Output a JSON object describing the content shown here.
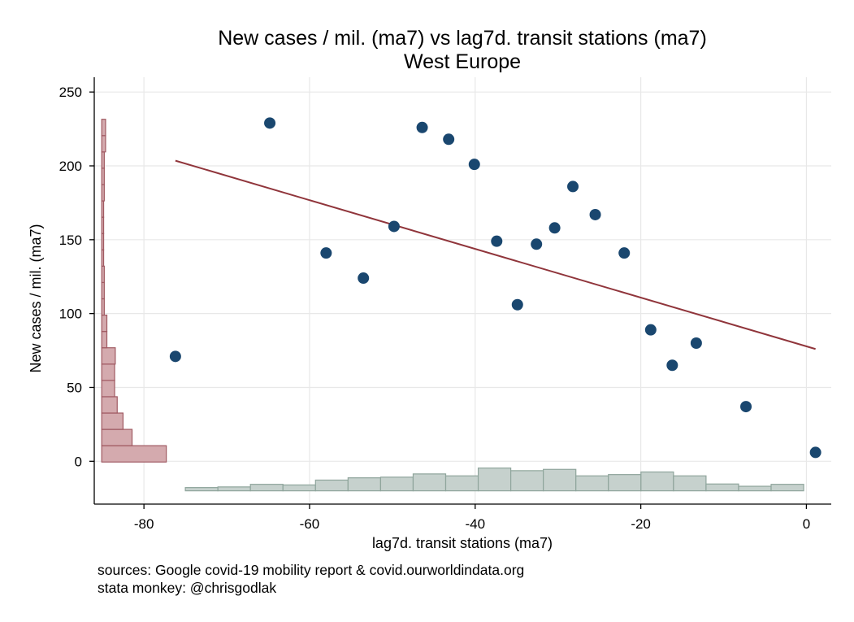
{
  "chart_data": {
    "type": "scatter",
    "title": "New cases / mil. (ma7) vs lag7d. transit stations (ma7)",
    "subtitle": "West Europe",
    "xlabel": "lag7d. transit stations (ma7)",
    "ylabel": "New cases / mil. (ma7)",
    "xlim": [
      -86,
      3
    ],
    "ylim": [
      -29,
      260
    ],
    "xticks": [
      -80,
      -60,
      -40,
      -20,
      0
    ],
    "yticks": [
      0,
      50,
      100,
      150,
      200,
      250
    ],
    "grid": true,
    "notes": [
      "sources: Google covid-19 mobility report & covid.ourworldindata.org",
      "stata monkey: @chrisgodlak"
    ],
    "colors": {
      "points": "#1a476f",
      "fit_line": "#90353b",
      "x_hist_fill": "#c6d1cd",
      "x_hist_edge": "#8fa59c",
      "y_hist_fill": "#d4aaae",
      "y_hist_edge": "#a05a62",
      "grid": "#e8e8e8"
    },
    "points": [
      {
        "x": -76.2,
        "y": 71
      },
      {
        "x": -64.8,
        "y": 229
      },
      {
        "x": -58,
        "y": 141
      },
      {
        "x": -53.5,
        "y": 124
      },
      {
        "x": -49.8,
        "y": 159
      },
      {
        "x": -46.4,
        "y": 226
      },
      {
        "x": -43.2,
        "y": 218
      },
      {
        "x": -40.1,
        "y": 201
      },
      {
        "x": -37.4,
        "y": 149
      },
      {
        "x": -34.9,
        "y": 106
      },
      {
        "x": -32.6,
        "y": 147
      },
      {
        "x": -30.4,
        "y": 158
      },
      {
        "x": -28.2,
        "y": 186
      },
      {
        "x": -25.5,
        "y": 167
      },
      {
        "x": -22,
        "y": 141
      },
      {
        "x": -18.8,
        "y": 89
      },
      {
        "x": -16.2,
        "y": 65
      },
      {
        "x": -13.3,
        "y": 80
      },
      {
        "x": -7.3,
        "y": 37
      },
      {
        "x": 1.1,
        "y": 6
      }
    ],
    "fit_line": {
      "x": [
        -76.2,
        1.1
      ],
      "y": [
        203.5,
        76
      ]
    },
    "x_histogram": {
      "start": -75,
      "bin_width": 3.93,
      "heights": [
        0.1,
        0.12,
        0.2,
        0.18,
        0.33,
        0.4,
        0.42,
        0.52,
        0.46,
        0.7,
        0.62,
        0.66,
        0.46,
        0.5,
        0.58,
        0.46,
        0.21,
        0.14,
        0.2
      ]
    },
    "y_histogram": {
      "start": -0.5,
      "bin_width": 11.05,
      "heights": [
        1.0,
        0.47,
        0.33,
        0.24,
        0.2,
        0.2,
        0.21,
        0.08,
        0.08,
        0.04,
        0.04,
        0.04,
        0.03,
        0.03,
        0.03,
        0.03,
        0.04,
        0.04,
        0.04,
        0.06,
        0.06
      ]
    }
  }
}
